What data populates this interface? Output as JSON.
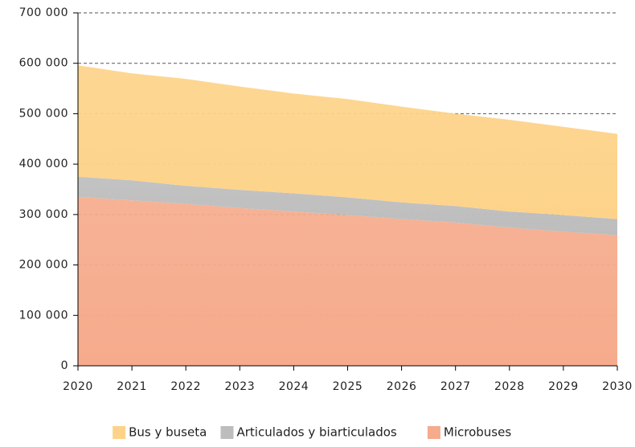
{
  "chart_data": {
    "type": "stacked_area",
    "x": [
      2020,
      2021,
      2022,
      2023,
      2024,
      2025,
      2026,
      2027,
      2028,
      2029,
      2030
    ],
    "xlim": [
      2020,
      2030
    ],
    "xticks": [
      2020,
      2021,
      2022,
      2023,
      2024,
      2025,
      2026,
      2027,
      2028,
      2029,
      2030
    ],
    "ylim": [
      0,
      700000
    ],
    "yticks": [
      0,
      {
        "value": 100000,
        "label": "100 000"
      },
      {
        "value": 200000,
        "label": "200 000"
      },
      {
        "value": 300000,
        "label": "300 000"
      },
      {
        "value": 400000,
        "label": "400 000"
      },
      {
        "value": 500000,
        "label": "500 000"
      },
      {
        "value": 600000,
        "label": "600 000"
      },
      {
        "value": 700000,
        "label": "700 000"
      }
    ],
    "grid": true,
    "legend": "bottom",
    "series": [
      {
        "name": "Bus y buseta",
        "color": "#fdd38a",
        "values": [
          221000,
          212000,
          212000,
          205000,
          198000,
          195000,
          190000,
          183000,
          182000,
          175000,
          169000
        ]
      },
      {
        "name": "Articulados y biarticulados",
        "color": "#bdbdbd",
        "values": [
          40000,
          40000,
          36000,
          36000,
          36000,
          35000,
          33000,
          33000,
          32000,
          33000,
          32000
        ]
      },
      {
        "name": "Microbuses",
        "color": "#f6ab8c",
        "values": [
          335000,
          328000,
          321000,
          313000,
          306000,
          299000,
          291000,
          284000,
          274000,
          266000,
          259000
        ]
      }
    ]
  }
}
